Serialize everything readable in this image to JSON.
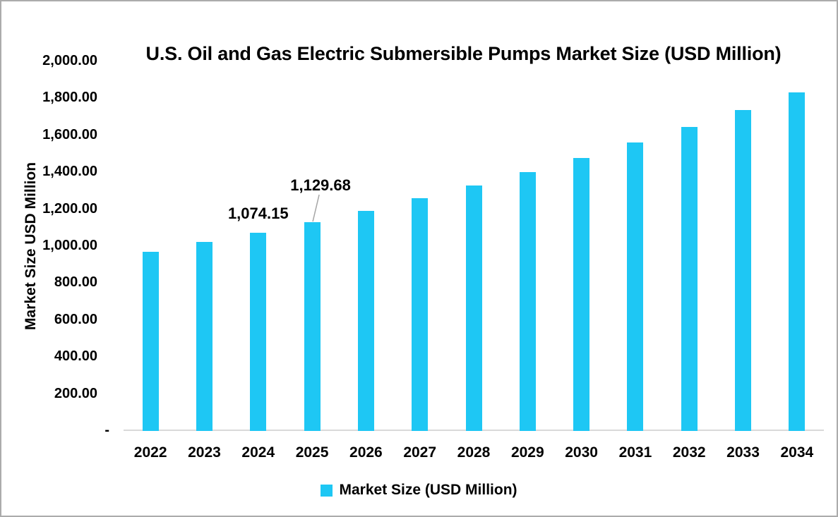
{
  "chart_data": {
    "type": "bar",
    "title": "U.S. Oil and Gas Electric Submersible Pumps Market Size (USD Million)",
    "ylabel": "Market Size USD Million",
    "xlabel": "",
    "categories": [
      "2022",
      "2023",
      "2024",
      "2025",
      "2026",
      "2027",
      "2028",
      "2029",
      "2030",
      "2031",
      "2032",
      "2033",
      "2034"
    ],
    "values": [
      971.14,
      1021.35,
      1074.15,
      1129.68,
      1192.04,
      1257.84,
      1327.28,
      1400.54,
      1477.85,
      1559.43,
      1645.51,
      1736.34,
      1832.19
    ],
    "value_labels_shown": [
      {
        "category": "2024",
        "text": "1,074.15"
      },
      {
        "category": "2025",
        "text": "1,129.68"
      }
    ],
    "y_ticks": [
      "2,000.00",
      "1,800.00",
      "1,600.00",
      "1,400.00",
      "1,200.00",
      "1,000.00",
      "800.00",
      "600.00",
      "400.00",
      "200.00",
      "-"
    ],
    "ylim": [
      0,
      2000
    ],
    "grid": false,
    "legend": {
      "position": "bottom",
      "label": "Market Size (USD Million)"
    },
    "colors": {
      "bar": "#1ec7f4",
      "axis_line": "#d9d9d9",
      "leader_line": "#a6a6a6",
      "text": "#000000",
      "border": "#ababab"
    }
  }
}
